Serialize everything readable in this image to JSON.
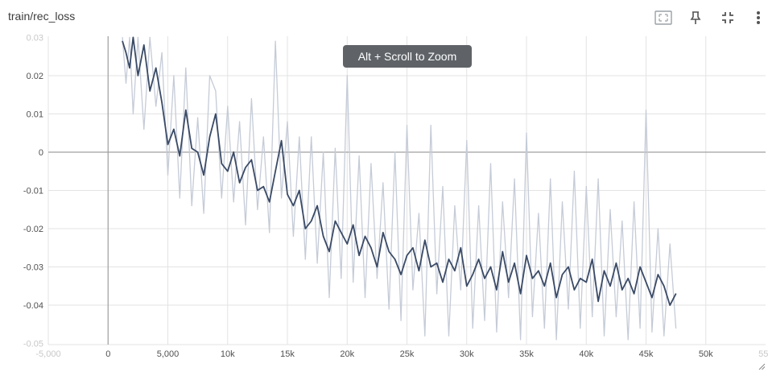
{
  "card": {
    "title": "train/rec_loss",
    "zoom_hint": "Alt + Scroll to Zoom",
    "icons": [
      "fit-domain-icon",
      "pin-icon",
      "collapse-icon",
      "more-vert-icon"
    ]
  },
  "colors": {
    "smoothed": "#3a4a66",
    "raw": "#c5cbd7",
    "grid": "#e3e3e3",
    "axis": "#a0a0a0"
  },
  "chart_data": {
    "type": "line",
    "title": "train/rec_loss",
    "xlabel": "",
    "ylabel": "",
    "xlim": [
      -5000,
      55000
    ],
    "ylim": [
      -0.0503,
      0.0303
    ],
    "x_ticks": [
      {
        "v": -5000,
        "label": "-5,000",
        "faint": true
      },
      {
        "v": 0,
        "label": "0"
      },
      {
        "v": 5000,
        "label": "5,000"
      },
      {
        "v": 10000,
        "label": "10k"
      },
      {
        "v": 15000,
        "label": "15k"
      },
      {
        "v": 20000,
        "label": "20k"
      },
      {
        "v": 25000,
        "label": "25k"
      },
      {
        "v": 30000,
        "label": "30k"
      },
      {
        "v": 35000,
        "label": "35k"
      },
      {
        "v": 40000,
        "label": "40k"
      },
      {
        "v": 45000,
        "label": "45k"
      },
      {
        "v": 50000,
        "label": "50k"
      },
      {
        "v": 55000,
        "label": "55k",
        "faint": true
      }
    ],
    "y_ticks": [
      {
        "v": 0.03,
        "label": "0.03",
        "faint": true
      },
      {
        "v": 0.02,
        "label": "0.02"
      },
      {
        "v": 0.01,
        "label": "0.01"
      },
      {
        "v": 0,
        "label": "0"
      },
      {
        "v": -0.01,
        "label": "-0.01"
      },
      {
        "v": -0.02,
        "label": "-0.02"
      },
      {
        "v": -0.03,
        "label": "-0.03"
      },
      {
        "v": -0.04,
        "label": "-0.04"
      },
      {
        "v": -0.05,
        "label": "-0.05",
        "faint": true
      }
    ],
    "grid": true,
    "series": [
      {
        "name": "smoothed",
        "x": [
          1200,
          1500,
          1800,
          2100,
          2500,
          3000,
          3500,
          4000,
          4500,
          5000,
          5500,
          6000,
          6500,
          7000,
          7500,
          8000,
          8500,
          9000,
          9500,
          10000,
          10500,
          11000,
          11500,
          12000,
          12500,
          13000,
          13500,
          14000,
          14500,
          15000,
          15500,
          16000,
          16500,
          17000,
          17500,
          18000,
          18500,
          19000,
          19500,
          20000,
          20500,
          21000,
          21500,
          22000,
          22500,
          23000,
          23500,
          24000,
          24500,
          25000,
          25500,
          26000,
          26500,
          27000,
          27500,
          28000,
          28500,
          29000,
          29500,
          30000,
          30500,
          31000,
          31500,
          32000,
          32500,
          33000,
          33500,
          34000,
          34500,
          35000,
          35500,
          36000,
          36500,
          37000,
          37500,
          38000,
          38500,
          39000,
          39500,
          40000,
          40500,
          41000,
          41500,
          42000,
          42500,
          43000,
          43500,
          44000,
          44500,
          45000,
          45500,
          46000,
          46500,
          47000,
          47500
        ],
        "values": [
          0.029,
          0.026,
          0.022,
          0.03,
          0.02,
          0.028,
          0.016,
          0.022,
          0.013,
          0.002,
          0.006,
          -0.001,
          0.011,
          0.001,
          0.0,
          -0.006,
          0.004,
          0.01,
          -0.003,
          -0.005,
          0.0,
          -0.008,
          -0.004,
          -0.002,
          -0.01,
          -0.009,
          -0.013,
          -0.005,
          0.003,
          -0.011,
          -0.014,
          -0.01,
          -0.02,
          -0.018,
          -0.014,
          -0.022,
          -0.026,
          -0.018,
          -0.021,
          -0.024,
          -0.019,
          -0.027,
          -0.022,
          -0.025,
          -0.03,
          -0.021,
          -0.026,
          -0.028,
          -0.032,
          -0.027,
          -0.025,
          -0.031,
          -0.023,
          -0.03,
          -0.029,
          -0.034,
          -0.028,
          -0.031,
          -0.025,
          -0.035,
          -0.032,
          -0.028,
          -0.033,
          -0.03,
          -0.036,
          -0.026,
          -0.034,
          -0.029,
          -0.037,
          -0.027,
          -0.033,
          -0.031,
          -0.035,
          -0.029,
          -0.038,
          -0.032,
          -0.03,
          -0.036,
          -0.033,
          -0.034,
          -0.028,
          -0.039,
          -0.031,
          -0.035,
          -0.029,
          -0.036,
          -0.033,
          -0.037,
          -0.03,
          -0.034,
          -0.038,
          -0.032,
          -0.035,
          -0.04,
          -0.037
        ]
      },
      {
        "name": "raw",
        "x": [
          1200,
          1500,
          1800,
          2100,
          2500,
          3000,
          3500,
          4000,
          4500,
          5000,
          5500,
          6000,
          6500,
          7000,
          7500,
          8000,
          8500,
          9000,
          9500,
          10000,
          10500,
          11000,
          11500,
          12000,
          12500,
          13000,
          13500,
          14000,
          14500,
          15000,
          15500,
          16000,
          16500,
          17000,
          17500,
          18000,
          18500,
          19000,
          19500,
          20000,
          20500,
          21000,
          21500,
          22000,
          22500,
          23000,
          23500,
          24000,
          24500,
          25000,
          25500,
          26000,
          26500,
          27000,
          27500,
          28000,
          28500,
          29000,
          29500,
          30000,
          30500,
          31000,
          31500,
          32000,
          32500,
          33000,
          33500,
          34000,
          34500,
          35000,
          35500,
          36000,
          36500,
          37000,
          37500,
          38000,
          38500,
          39000,
          39500,
          40000,
          40500,
          41000,
          41500,
          42000,
          42500,
          43000,
          43500,
          44000,
          44500,
          45000,
          45500,
          46000,
          46500,
          47000,
          47500
        ],
        "values": [
          0.03,
          0.018,
          0.03,
          0.01,
          0.03,
          0.006,
          0.03,
          0.012,
          0.026,
          -0.006,
          0.02,
          -0.012,
          0.022,
          -0.014,
          0.009,
          -0.016,
          0.02,
          0.016,
          -0.012,
          0.012,
          -0.013,
          0.008,
          -0.019,
          0.014,
          -0.015,
          0.004,
          -0.021,
          0.029,
          -0.012,
          0.008,
          -0.022,
          0.004,
          -0.028,
          0.004,
          -0.029,
          0.0,
          -0.038,
          0.001,
          -0.033,
          0.02,
          -0.034,
          -0.001,
          -0.038,
          -0.003,
          -0.033,
          -0.008,
          -0.041,
          0.0,
          -0.044,
          0.007,
          -0.036,
          -0.016,
          -0.048,
          0.007,
          -0.037,
          -0.009,
          -0.048,
          -0.014,
          -0.036,
          0.003,
          -0.046,
          -0.014,
          -0.044,
          -0.003,
          -0.047,
          -0.013,
          -0.038,
          -0.007,
          -0.049,
          0.005,
          -0.043,
          -0.016,
          -0.046,
          -0.007,
          -0.049,
          -0.013,
          -0.041,
          -0.005,
          -0.046,
          -0.009,
          -0.043,
          -0.007,
          -0.048,
          -0.015,
          -0.043,
          -0.018,
          -0.049,
          -0.013,
          -0.046,
          0.011,
          -0.047,
          -0.02,
          -0.048,
          -0.024,
          -0.046
        ]
      }
    ]
  }
}
